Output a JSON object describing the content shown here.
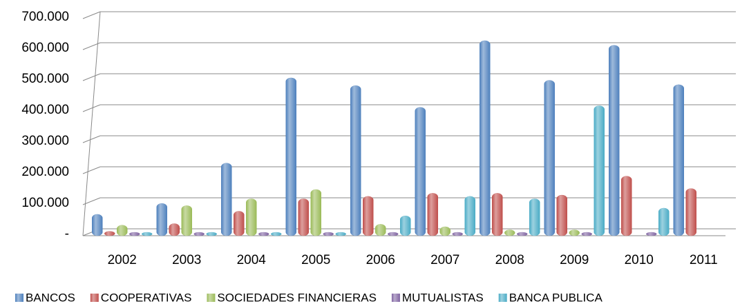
{
  "chart_data": {
    "type": "bar",
    "categories": [
      "2002",
      "2003",
      "2004",
      "2005",
      "2006",
      "2007",
      "2008",
      "2009",
      "2010",
      "2011"
    ],
    "series": [
      {
        "name": "BANCOS",
        "color": "#4f81bd",
        "values": [
          60000,
          95000,
          225000,
          500000,
          475000,
          405000,
          620000,
          492000,
          605000,
          478000
        ]
      },
      {
        "name": "COOPERATIVAS",
        "color": "#c0504d",
        "values": [
          5000,
          30000,
          70000,
          110000,
          118000,
          128000,
          128000,
          122000,
          183000,
          143000
        ]
      },
      {
        "name": "SOCIEDADES FINANCIERAS",
        "color": "#9bbb59",
        "values": [
          25000,
          88000,
          110000,
          140000,
          28000,
          20000,
          10000,
          10000,
          0,
          0
        ]
      },
      {
        "name": "MUTUALISTAS",
        "color": "#8064a2",
        "values": [
          2000,
          2000,
          2000,
          2000,
          2000,
          2000,
          2000,
          2000,
          2000,
          0
        ]
      },
      {
        "name": "BANCA PUBLICA",
        "color": "#4bacc6",
        "values": [
          2000,
          2000,
          2000,
          2000,
          55000,
          118000,
          110000,
          410000,
          80000,
          0
        ]
      }
    ],
    "ylim": [
      0,
      700000
    ],
    "yticks": [
      {
        "value": 0,
        "label": "-"
      },
      {
        "value": 100000,
        "label": "100.000"
      },
      {
        "value": 200000,
        "label": "200.000"
      },
      {
        "value": 300000,
        "label": "300.000"
      },
      {
        "value": 400000,
        "label": "400.000"
      },
      {
        "value": 500000,
        "label": "500.000"
      },
      {
        "value": 600000,
        "label": "600.000"
      },
      {
        "value": 700000,
        "label": "700.000"
      }
    ],
    "grid": true,
    "legend": "bottom"
  }
}
